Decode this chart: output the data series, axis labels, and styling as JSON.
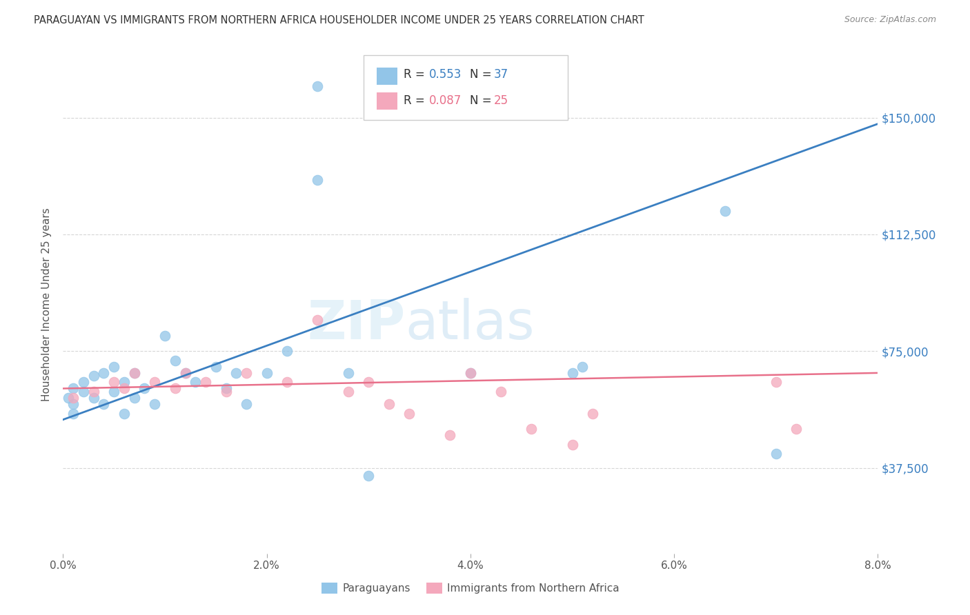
{
  "title": "PARAGUAYAN VS IMMIGRANTS FROM NORTHERN AFRICA HOUSEHOLDER INCOME UNDER 25 YEARS CORRELATION CHART",
  "source": "Source: ZipAtlas.com",
  "ylabel": "Householder Income Under 25 years",
  "xlabel_ticks": [
    "0.0%",
    "2.0%",
    "4.0%",
    "6.0%",
    "8.0%"
  ],
  "xlabel_vals": [
    0.0,
    0.02,
    0.04,
    0.06,
    0.08
  ],
  "ylabel_ticks": [
    "$37,500",
    "$75,000",
    "$112,500",
    "$150,000"
  ],
  "ylabel_vals": [
    37500,
    75000,
    112500,
    150000
  ],
  "xlim": [
    0.0,
    0.08
  ],
  "ylim": [
    10000,
    170000
  ],
  "watermark_zip": "ZIP",
  "watermark_atlas": "atlas",
  "legend_blue_r": "R = 0.553",
  "legend_blue_n": "N = 37",
  "legend_pink_r": "R = 0.087",
  "legend_pink_n": "N = 25",
  "legend1": "Paraguayans",
  "legend2": "Immigrants from Northern Africa",
  "blue_color": "#92c5e8",
  "pink_color": "#f4a8bc",
  "blue_line_color": "#3a7fc1",
  "pink_line_color": "#e8708a",
  "blue_x": [
    0.0005,
    0.001,
    0.001,
    0.001,
    0.002,
    0.002,
    0.003,
    0.003,
    0.004,
    0.004,
    0.005,
    0.005,
    0.006,
    0.006,
    0.007,
    0.007,
    0.008,
    0.009,
    0.01,
    0.011,
    0.012,
    0.013,
    0.015,
    0.016,
    0.017,
    0.018,
    0.02,
    0.022,
    0.025,
    0.025,
    0.028,
    0.03,
    0.04,
    0.05,
    0.051,
    0.065,
    0.07
  ],
  "blue_y": [
    60000,
    58000,
    63000,
    55000,
    65000,
    62000,
    67000,
    60000,
    68000,
    58000,
    70000,
    62000,
    65000,
    55000,
    68000,
    60000,
    63000,
    58000,
    80000,
    72000,
    68000,
    65000,
    70000,
    63000,
    68000,
    58000,
    68000,
    75000,
    160000,
    130000,
    68000,
    35000,
    68000,
    68000,
    70000,
    120000,
    42000
  ],
  "pink_x": [
    0.001,
    0.003,
    0.005,
    0.006,
    0.007,
    0.009,
    0.011,
    0.012,
    0.014,
    0.016,
    0.018,
    0.022,
    0.025,
    0.028,
    0.03,
    0.032,
    0.034,
    0.038,
    0.04,
    0.043,
    0.046,
    0.05,
    0.052,
    0.07,
    0.072
  ],
  "pink_y": [
    60000,
    62000,
    65000,
    63000,
    68000,
    65000,
    63000,
    68000,
    65000,
    62000,
    68000,
    65000,
    85000,
    62000,
    65000,
    58000,
    55000,
    48000,
    68000,
    62000,
    50000,
    45000,
    55000,
    65000,
    50000
  ],
  "blue_line_x0": 0.0,
  "blue_line_y0": 53000,
  "blue_line_x1": 0.08,
  "blue_line_y1": 148000,
  "pink_line_x0": 0.0,
  "pink_line_y0": 63000,
  "pink_line_x1": 0.08,
  "pink_line_y1": 68000,
  "background_color": "#ffffff",
  "grid_color": "#cccccc"
}
